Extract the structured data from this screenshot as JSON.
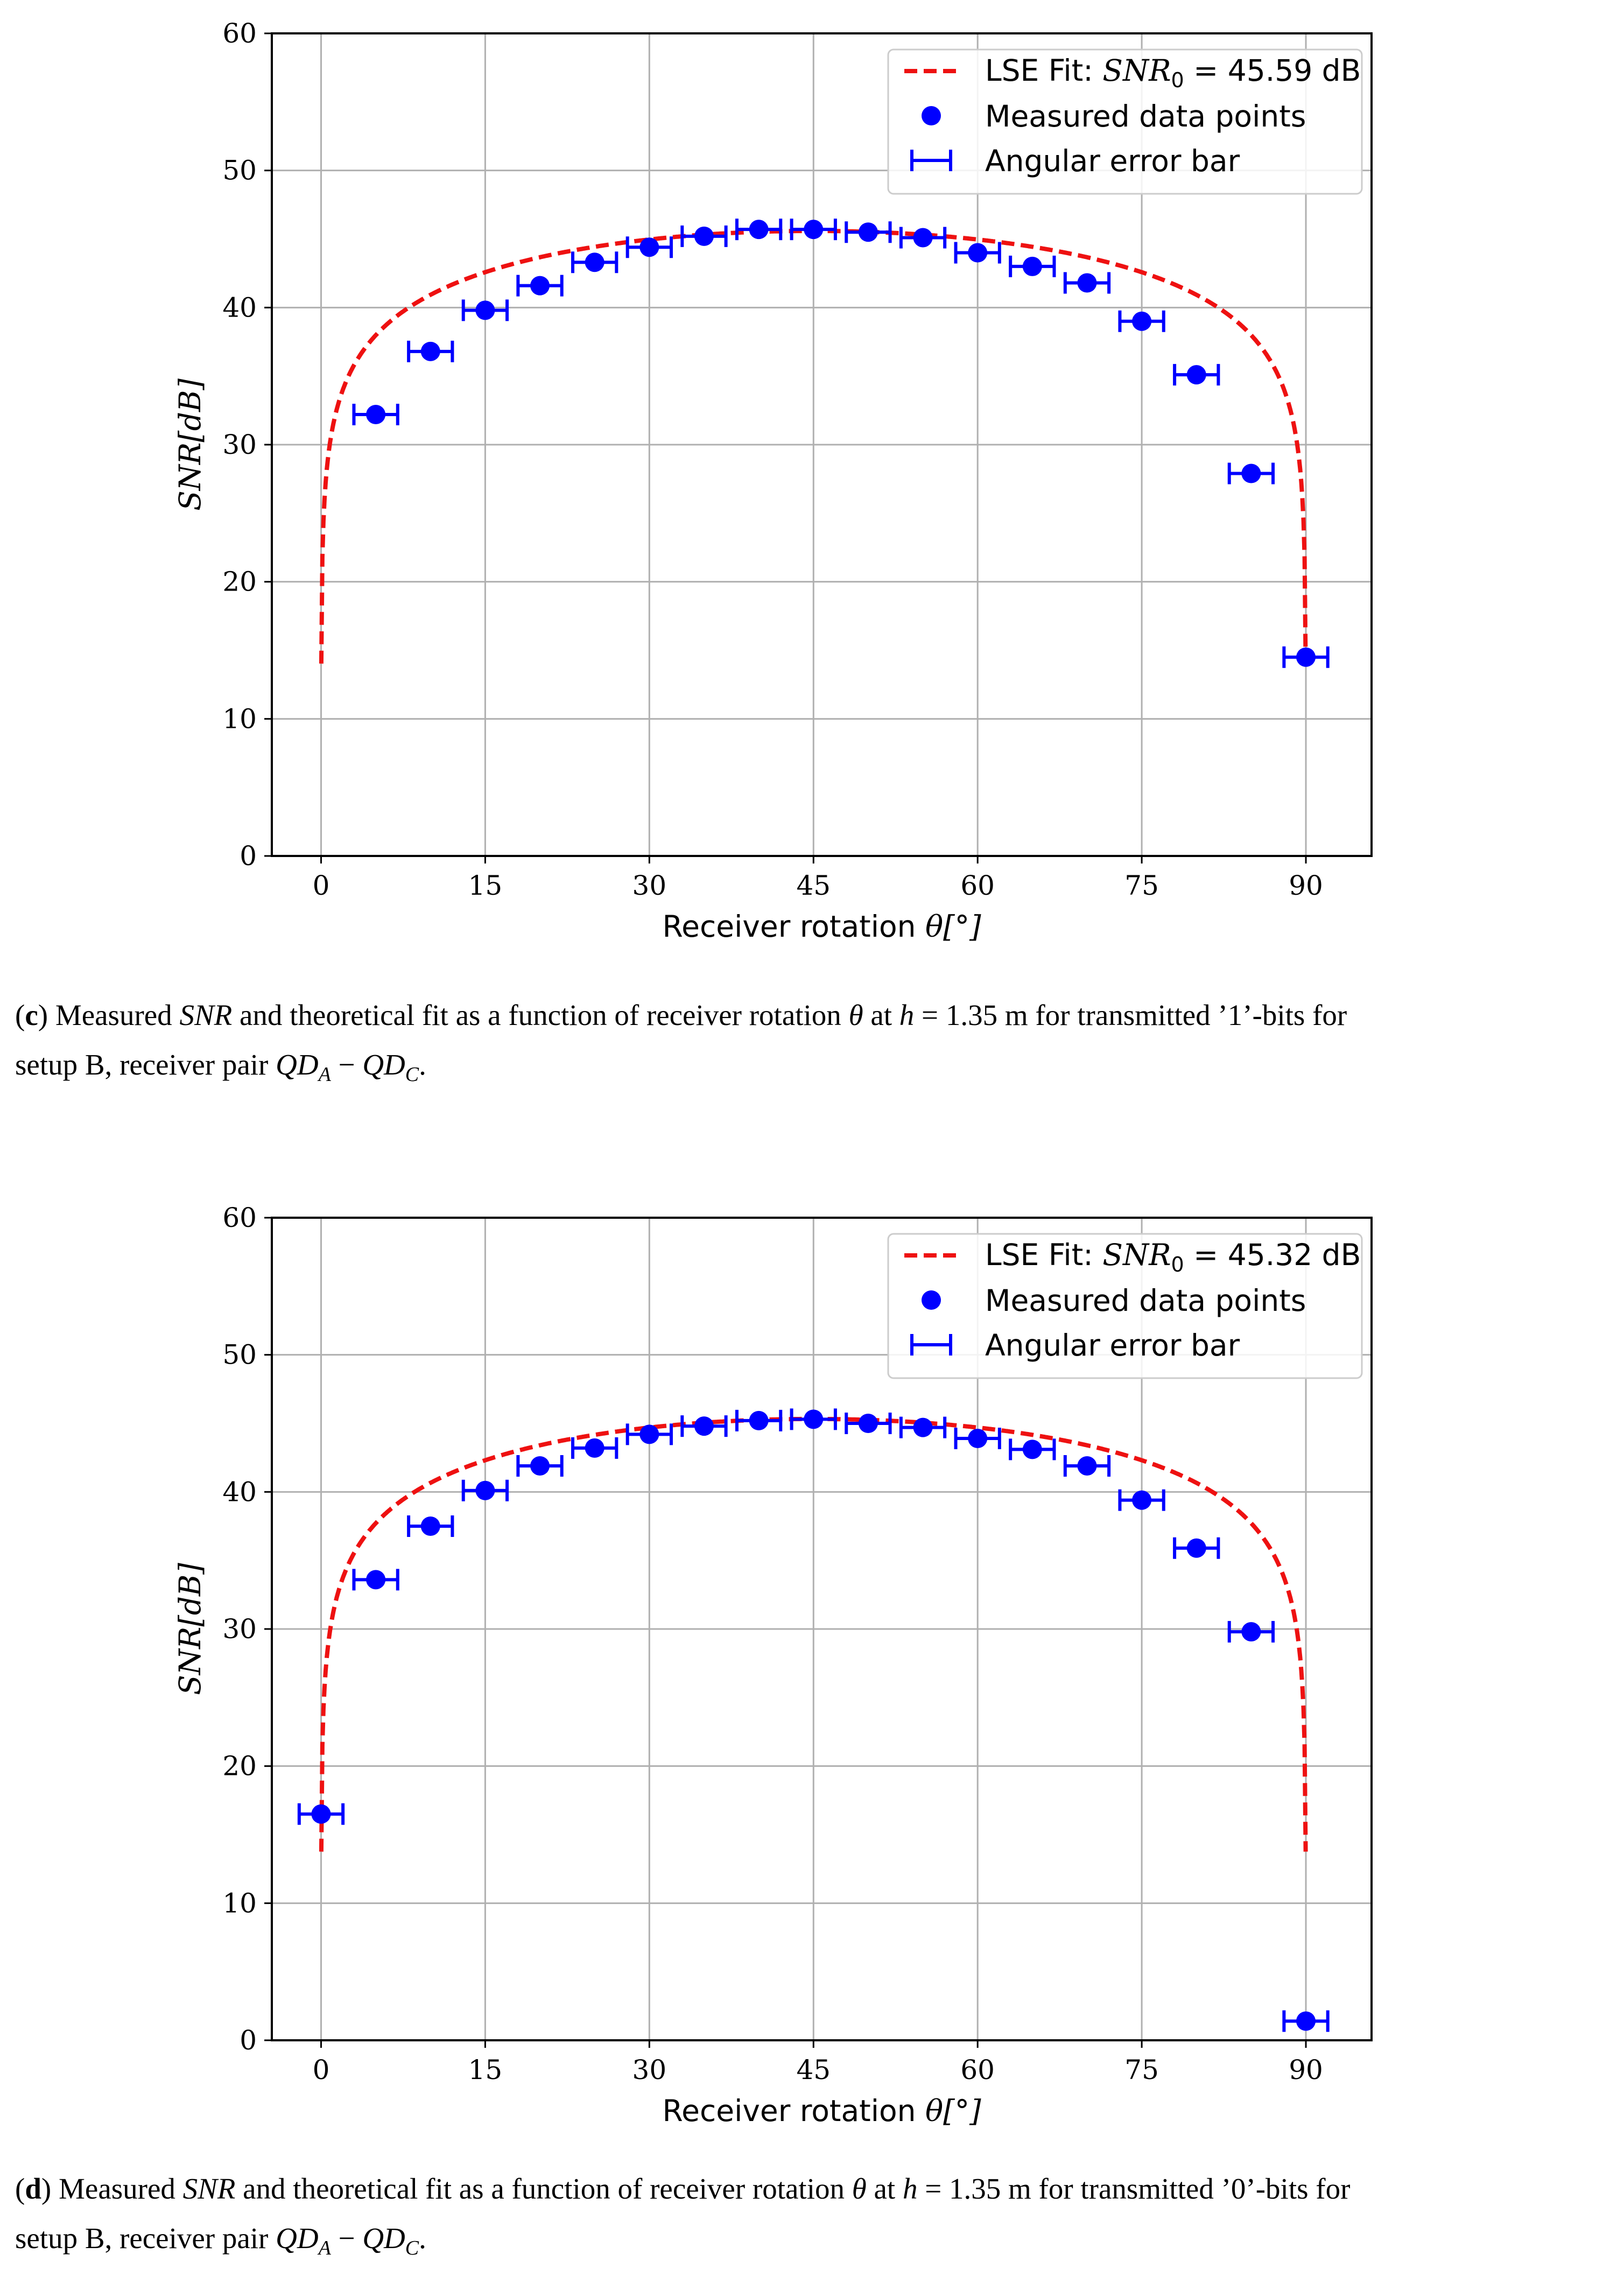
{
  "chart_data": [
    {
      "type": "line",
      "panel_letter": "c",
      "xlabel": "Receiver rotation",
      "xlabel_math": "θ[°]",
      "ylabel": "SNR[dB]",
      "xlim": [
        -4.5,
        96
      ],
      "ylim": [
        0,
        60
      ],
      "xticks": [
        "0",
        "15",
        "30",
        "45",
        "60",
        "75",
        "90"
      ],
      "yticks": [
        "0",
        "10",
        "20",
        "30",
        "40",
        "50",
        "60"
      ],
      "grid": true,
      "legend_position": "top-right",
      "legend": {
        "fit_prefix": "LSE Fit: ",
        "fit_symbol": "SNR",
        "fit_sub": "0",
        "fit_value": " = 45.59 dB",
        "measured": "Measured data points",
        "errorbar": "Angular error bar"
      },
      "snr0": 45.59,
      "error_halfwidth_deg": 2,
      "x": [
        5,
        10,
        15,
        20,
        25,
        30,
        35,
        40,
        45,
        50,
        55,
        60,
        65,
        70,
        75,
        80,
        85,
        90
      ],
      "y": [
        32.2,
        36.8,
        39.8,
        41.6,
        43.3,
        44.4,
        45.2,
        45.7,
        45.7,
        45.5,
        45.1,
        44.0,
        43.0,
        41.8,
        39.0,
        35.1,
        27.9,
        14.5
      ],
      "colors": {
        "fit": "#ee1111",
        "points": "#0000ff",
        "grid": "#b0b0b0"
      },
      "caption": {
        "letter": "c",
        "line1_a": " Measured ",
        "sym_snr": "SNR",
        "line1_b": " and theoretical fit as a function of receiver rotation ",
        "sym_theta": "θ",
        "line1_c": " at ",
        "sym_h": "h",
        "line1_d": " = 1.35 m for transmitted ’1’-bits for",
        "line2_a": "setup B, receiver pair ",
        "sym_qd": "QD",
        "sub_a": "A",
        "minus": " − ",
        "sub_c": "C",
        "end": "."
      }
    },
    {
      "type": "line",
      "panel_letter": "d",
      "xlabel": "Receiver rotation",
      "xlabel_math": "θ[°]",
      "ylabel": "SNR[dB]",
      "xlim": [
        -4.5,
        96
      ],
      "ylim": [
        0,
        60
      ],
      "xticks": [
        "0",
        "15",
        "30",
        "45",
        "60",
        "75",
        "90"
      ],
      "yticks": [
        "0",
        "10",
        "20",
        "30",
        "40",
        "50",
        "60"
      ],
      "grid": true,
      "legend_position": "top-right",
      "legend": {
        "fit_prefix": "LSE Fit: ",
        "fit_symbol": "SNR",
        "fit_sub": "0",
        "fit_value": " = 45.32 dB",
        "measured": "Measured data points",
        "errorbar": "Angular error bar"
      },
      "snr0": 45.32,
      "error_halfwidth_deg": 2,
      "x": [
        0,
        5,
        10,
        15,
        20,
        25,
        30,
        35,
        40,
        45,
        50,
        55,
        60,
        65,
        70,
        75,
        80,
        85,
        90
      ],
      "y": [
        16.5,
        33.6,
        37.5,
        40.1,
        41.9,
        43.2,
        44.2,
        44.8,
        45.2,
        45.3,
        45.0,
        44.7,
        43.9,
        43.1,
        41.9,
        39.4,
        35.9,
        29.8,
        1.4
      ],
      "colors": {
        "fit": "#ee1111",
        "points": "#0000ff",
        "grid": "#b0b0b0"
      },
      "caption": {
        "letter": "d",
        "line1_a": " Measured ",
        "sym_snr": "SNR",
        "line1_b": " and theoretical fit as a function of receiver rotation ",
        "sym_theta": "θ",
        "line1_c": " at ",
        "sym_h": "h",
        "line1_d": " = 1.35 m for transmitted ’0’-bits for",
        "line2_a": "setup B, receiver pair ",
        "sym_qd": "QD",
        "sub_a": "A",
        "minus": " − ",
        "sub_c": "C",
        "end": "."
      }
    }
  ]
}
